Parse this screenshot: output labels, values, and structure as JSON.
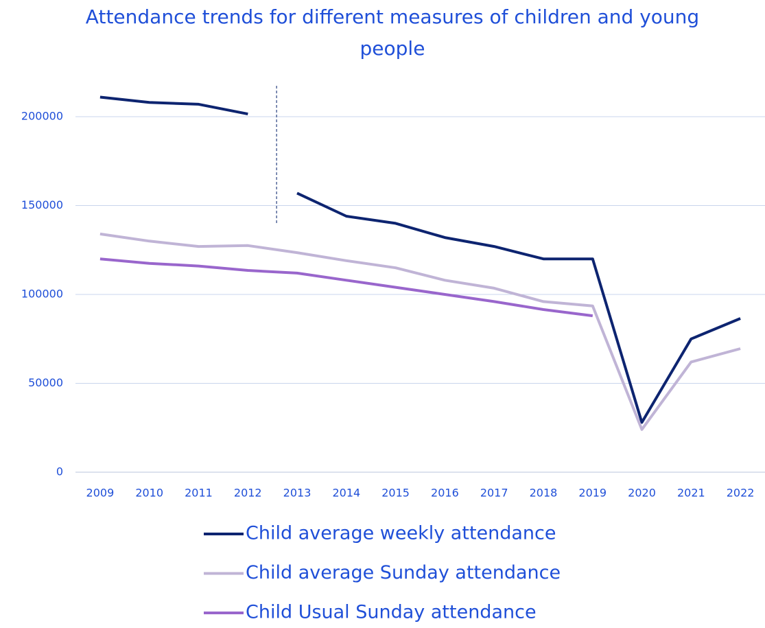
{
  "chart_data": {
    "type": "line",
    "title": "Attendance trends for different measures of children and young people",
    "categories": [
      "2009",
      "2010",
      "2011",
      "2012",
      "2013",
      "2014",
      "2015",
      "2016",
      "2017",
      "2018",
      "2019",
      "2020",
      "2021",
      "2022"
    ],
    "series": [
      {
        "name": "Child average weekly attendance",
        "color": "#0d2470",
        "break_after": "2012",
        "values": [
          211000,
          208000,
          207000,
          201500,
          157000,
          144000,
          140000,
          132000,
          127000,
          120000,
          120000,
          28000,
          75000,
          86500
        ]
      },
      {
        "name": "Child average Sunday attendance",
        "color": "#c0b4d6",
        "values": [
          134000,
          130000,
          127000,
          127500,
          123500,
          119000,
          115000,
          108000,
          103500,
          96000,
          93500,
          24000,
          62000,
          69500
        ]
      },
      {
        "name": "Child Usual Sunday attendance",
        "color": "#9966cc",
        "values": [
          120000,
          117500,
          116000,
          113500,
          112000,
          108000,
          104000,
          100000,
          96000,
          91500,
          88000,
          null,
          null,
          null
        ]
      }
    ],
    "ylim": [
      0,
      218000
    ],
    "yticks": [
      0,
      50000,
      100000,
      150000,
      200000
    ],
    "grid": true,
    "legend": "bottom"
  }
}
